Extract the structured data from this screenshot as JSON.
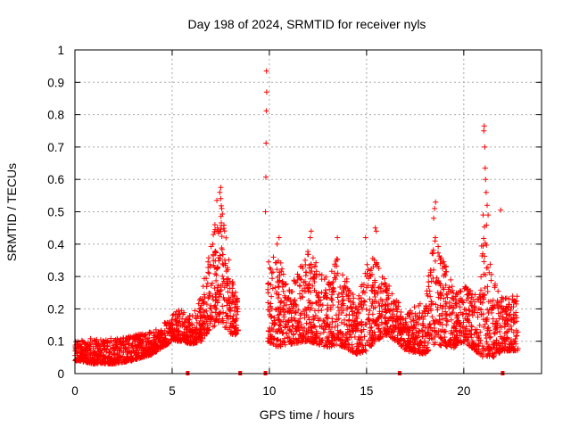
{
  "chart_data": {
    "type": "scatter",
    "title": "Day 198 of 2024, SRMTID for receiver nyls",
    "xlabel": "GPS time / hours",
    "ylabel": "SRMTID / TECUs",
    "xlim": [
      0,
      24
    ],
    "ylim": [
      0,
      1
    ],
    "x_ticks": [
      0,
      5,
      10,
      15,
      20
    ],
    "y_ticks": [
      0,
      0.1,
      0.2,
      0.3,
      0.4,
      0.5,
      0.6,
      0.7,
      0.8,
      0.9,
      1
    ],
    "grid": true,
    "marker": "+",
    "series_color": "#ff0000",
    "envelope": [
      {
        "x": 0.0,
        "low": 0.04,
        "high": 0.1
      },
      {
        "x": 1.0,
        "low": 0.03,
        "high": 0.11
      },
      {
        "x": 2.0,
        "low": 0.03,
        "high": 0.11
      },
      {
        "x": 3.0,
        "low": 0.04,
        "high": 0.12
      },
      {
        "x": 4.0,
        "low": 0.06,
        "high": 0.13
      },
      {
        "x": 4.5,
        "low": 0.08,
        "high": 0.15
      },
      {
        "x": 5.0,
        "low": 0.1,
        "high": 0.19
      },
      {
        "x": 5.5,
        "low": 0.1,
        "high": 0.2
      },
      {
        "x": 6.0,
        "low": 0.09,
        "high": 0.18
      },
      {
        "x": 6.5,
        "low": 0.1,
        "high": 0.24
      },
      {
        "x": 7.0,
        "low": 0.14,
        "high": 0.42
      },
      {
        "x": 7.5,
        "low": 0.16,
        "high": 0.55
      },
      {
        "x": 8.0,
        "low": 0.12,
        "high": 0.32
      },
      {
        "x": 8.4,
        "low": 0.12,
        "high": 0.22
      },
      {
        "x": 9.9,
        "low": 0.1,
        "high": 0.38
      },
      {
        "x": 10.5,
        "low": 0.08,
        "high": 0.36
      },
      {
        "x": 11.0,
        "low": 0.09,
        "high": 0.26
      },
      {
        "x": 12.0,
        "low": 0.1,
        "high": 0.38
      },
      {
        "x": 13.0,
        "low": 0.08,
        "high": 0.3
      },
      {
        "x": 13.5,
        "low": 0.09,
        "high": 0.36
      },
      {
        "x": 14.5,
        "low": 0.06,
        "high": 0.22
      },
      {
        "x": 15.0,
        "low": 0.07,
        "high": 0.34
      },
      {
        "x": 15.5,
        "low": 0.1,
        "high": 0.38
      },
      {
        "x": 16.0,
        "low": 0.12,
        "high": 0.3
      },
      {
        "x": 16.5,
        "low": 0.1,
        "high": 0.24
      },
      {
        "x": 17.0,
        "low": 0.07,
        "high": 0.18
      },
      {
        "x": 18.0,
        "low": 0.06,
        "high": 0.24
      },
      {
        "x": 18.5,
        "low": 0.09,
        "high": 0.45
      },
      {
        "x": 19.5,
        "low": 0.08,
        "high": 0.26
      },
      {
        "x": 20.0,
        "low": 0.1,
        "high": 0.28
      },
      {
        "x": 20.8,
        "low": 0.06,
        "high": 0.24
      },
      {
        "x": 21.0,
        "low": 0.05,
        "high": 0.55
      },
      {
        "x": 21.5,
        "low": 0.05,
        "high": 0.3
      },
      {
        "x": 22.0,
        "low": 0.07,
        "high": 0.24
      },
      {
        "x": 22.8,
        "low": 0.07,
        "high": 0.26
      }
    ],
    "outliers": [
      {
        "x": 9.85,
        "y": 0.935
      },
      {
        "x": 9.86,
        "y": 0.87
      },
      {
        "x": 9.84,
        "y": 0.812
      },
      {
        "x": 9.83,
        "y": 0.712
      },
      {
        "x": 9.82,
        "y": 0.607
      },
      {
        "x": 9.8,
        "y": 0.5
      },
      {
        "x": 21.05,
        "y": 0.765
      },
      {
        "x": 21.03,
        "y": 0.75
      },
      {
        "x": 21.08,
        "y": 0.7
      },
      {
        "x": 21.1,
        "y": 0.635
      },
      {
        "x": 21.12,
        "y": 0.6
      },
      {
        "x": 21.15,
        "y": 0.56
      },
      {
        "x": 21.2,
        "y": 0.52
      },
      {
        "x": 21.25,
        "y": 0.49
      },
      {
        "x": 21.9,
        "y": 0.505
      },
      {
        "x": 7.5,
        "y": 0.575
      },
      {
        "x": 7.45,
        "y": 0.56
      },
      {
        "x": 7.3,
        "y": 0.535
      },
      {
        "x": 7.55,
        "y": 0.51
      },
      {
        "x": 7.2,
        "y": 0.46
      },
      {
        "x": 18.55,
        "y": 0.53
      },
      {
        "x": 18.5,
        "y": 0.51
      },
      {
        "x": 18.45,
        "y": 0.48
      },
      {
        "x": 12.15,
        "y": 0.44
      },
      {
        "x": 12.1,
        "y": 0.42
      },
      {
        "x": 13.5,
        "y": 0.42
      },
      {
        "x": 15.45,
        "y": 0.45
      },
      {
        "x": 15.5,
        "y": 0.44
      },
      {
        "x": 14.95,
        "y": 0.42
      },
      {
        "x": 10.5,
        "y": 0.42
      },
      {
        "x": 10.4,
        "y": 0.4
      }
    ],
    "gap_markers": [
      5.8,
      8.5,
      9.8,
      16.7,
      22.0
    ]
  }
}
